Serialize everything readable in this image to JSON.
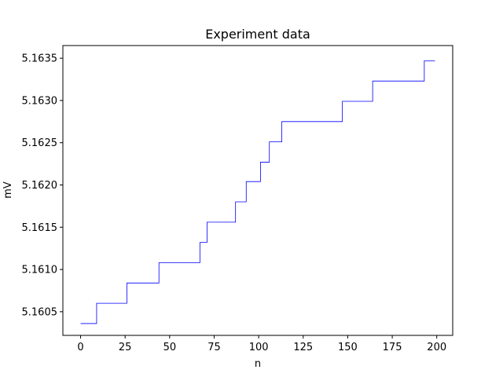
{
  "chart_data": {
    "type": "line",
    "title": "Experiment data",
    "xlabel": "n",
    "ylabel": "mV",
    "xlim": [
      -9.95,
      208.95
    ],
    "ylim": [
      5.16022,
      5.16365
    ],
    "x_ticks": [
      0,
      25,
      50,
      75,
      100,
      125,
      150,
      175,
      200
    ],
    "x_tick_labels": [
      "0",
      "25",
      "50",
      "75",
      "100",
      "125",
      "150",
      "175",
      "200"
    ],
    "y_ticks": [
      5.1605,
      5.161,
      5.1615,
      5.162,
      5.1625,
      5.163,
      5.1635
    ],
    "y_tick_labels": [
      "5.1605",
      "5.1610",
      "5.1615",
      "5.1620",
      "5.1625",
      "5.1630",
      "5.1635"
    ],
    "grid": false,
    "series": [
      {
        "color": "#0000ff",
        "step": "post",
        "x": [
          0,
          9,
          26,
          44,
          67,
          71,
          87,
          93,
          101,
          106,
          113,
          147,
          164,
          193,
          199
        ],
        "values": [
          5.16036,
          5.1606,
          5.16084,
          5.16108,
          5.16132,
          5.16156,
          5.1618,
          5.16204,
          5.16227,
          5.16251,
          5.16275,
          5.16299,
          5.16323,
          5.16347,
          5.16347
        ]
      }
    ]
  }
}
